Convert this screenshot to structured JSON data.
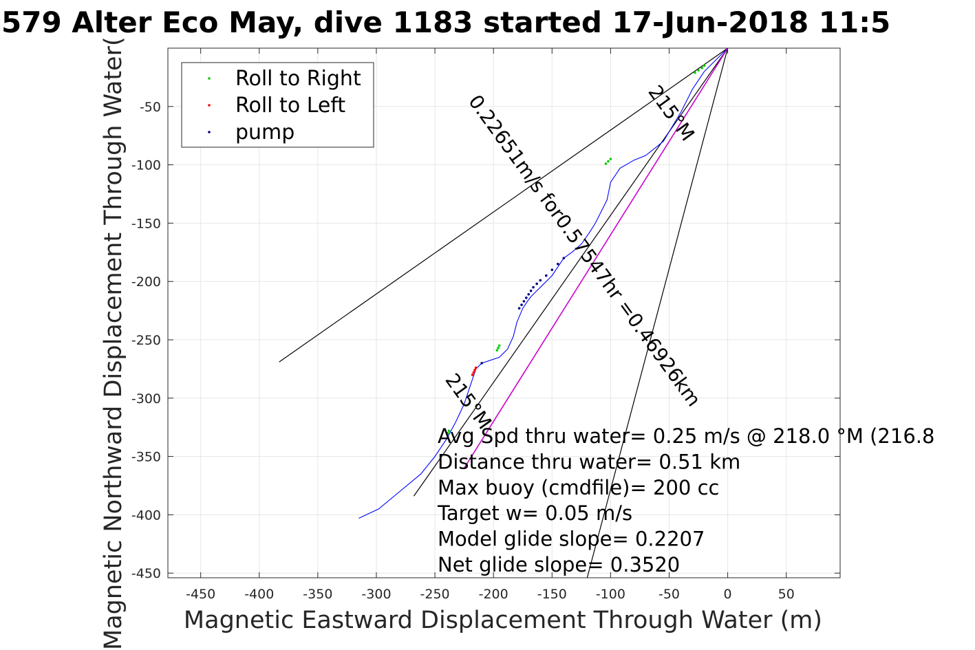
{
  "chart_data": {
    "type": "scatter",
    "title": "579 Alter Eco May, dive 1183 started 17-Jun-2018 11:5",
    "xlabel": "Magnetic Eastward Displacement Through Water (m)",
    "ylabel": "Magnetic Northward Displacement Through Water(",
    "xlim": [
      -478,
      96
    ],
    "ylim": [
      -454,
      0
    ],
    "xticks": [
      -450,
      -400,
      -350,
      -300,
      -250,
      -200,
      -150,
      -100,
      -50,
      0,
      50
    ],
    "yticks": [
      -50,
      -100,
      -150,
      -200,
      -250,
      -300,
      -350,
      -400,
      -450
    ],
    "grid": true,
    "legend_position": "top-left",
    "colors": {
      "track": "#0000ff",
      "roll_right": "#00cc00",
      "roll_left": "#ff0000",
      "pump": "#000080",
      "heading_line": "#cc00cc",
      "reference_lines": "#000000",
      "grid": "#e6e6e6"
    },
    "legend": [
      {
        "label": "Roll to Right",
        "color": "#00cc00"
      },
      {
        "label": "Roll to Left",
        "color": "#ff0000"
      },
      {
        "label": "pump",
        "color": "#000080"
      }
    ],
    "series": [
      {
        "name": "track",
        "style": "line",
        "x": [
          0,
          -10,
          -20,
          -30,
          -40,
          -55,
          -70,
          -80,
          -92,
          -100,
          -103,
          -108,
          -113,
          -118,
          -125,
          -133,
          -140,
          -150,
          -160,
          -165,
          -168,
          -171,
          -175,
          -180,
          -183,
          -188,
          -195,
          -210,
          -215,
          -220,
          -225,
          -232,
          -240,
          -250,
          -262,
          -280,
          -298,
          -315
        ],
        "y": [
          0,
          -10,
          -20,
          -35,
          -55,
          -80,
          -92,
          -96,
          -103,
          -115,
          -130,
          -140,
          -150,
          -158,
          -168,
          -175,
          -180,
          -195,
          -205,
          -210,
          -213,
          -217,
          -223,
          -235,
          -247,
          -258,
          -265,
          -270,
          -275,
          -290,
          -305,
          -320,
          -335,
          -350,
          -365,
          -380,
          -395,
          -403
        ]
      },
      {
        "name": "heading",
        "style": "line",
        "x": [
          0,
          -225
        ],
        "y": [
          0,
          -360
        ]
      }
    ],
    "reference_lines": [
      {
        "x": [
          0,
          -383
        ],
        "y": [
          0,
          -269
        ]
      },
      {
        "x": [
          0,
          -268
        ],
        "y": [
          0,
          -384
        ]
      },
      {
        "x": [
          0,
          -120
        ],
        "y": [
          0,
          -454
        ]
      }
    ],
    "points": {
      "roll_right": {
        "x": [
          -20,
          -22,
          -25,
          -28,
          -100,
          -102,
          -104,
          -195,
          -196,
          -197,
          -238,
          -239
        ],
        "y": [
          -15,
          -17,
          -19,
          -21,
          -95,
          -97,
          -99,
          -255,
          -257,
          -259,
          -328,
          -330
        ]
      },
      "roll_left": {
        "x": [
          -215,
          -216,
          -217,
          -218
        ],
        "y": [
          -274,
          -276,
          -278,
          -280
        ]
      },
      "pump": {
        "x": [
          -140,
          -145,
          -150,
          -155,
          -160,
          -163,
          -166,
          -168,
          -170,
          -172,
          -174,
          -176,
          -178,
          -210
        ],
        "y": [
          -180,
          -185,
          -190,
          -195,
          -199,
          -202,
          -205,
          -208,
          -211,
          -214,
          -217,
          -220,
          -223,
          -270
        ]
      }
    },
    "annotations": {
      "stats": [
        "Avg Spd thru water=  0.25 m/s @ 218.0 °M (216.8",
        "Distance thru water=  0.51 km",
        "Max buoy (cmdfile)= 200 cc",
        "Target w= 0.05 m/s",
        "Model glide slope= 0.2207",
        "Net glide slope= 0.3520"
      ],
      "heading_upper": "215°M",
      "speed_label": "0.22651m/s for0.57547hr =0.46926km",
      "heading_lower": "215°M"
    }
  }
}
